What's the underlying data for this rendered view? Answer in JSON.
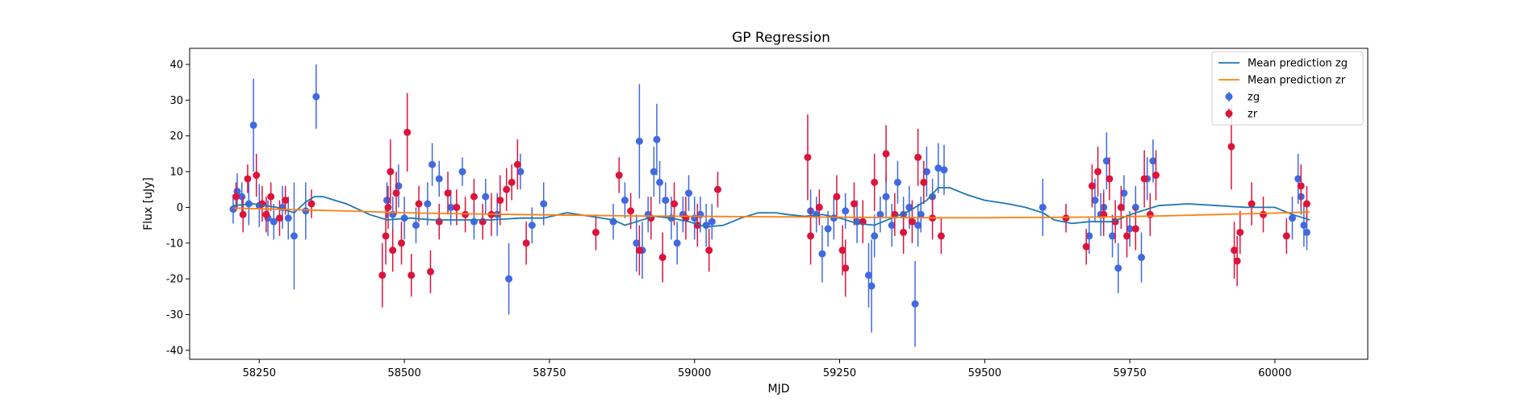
{
  "chart_data": {
    "type": "scatter",
    "title": "GP Regression",
    "xlabel": "MJD",
    "ylabel": "Flux [uJy]",
    "xlim": [
      58130,
      60160
    ],
    "ylim": [
      -42.5,
      44.5
    ],
    "xticks": [
      58250,
      58500,
      58750,
      59000,
      59250,
      59500,
      59750,
      60000
    ],
    "yticks": [
      -40,
      -30,
      -20,
      -10,
      0,
      10,
      20,
      30,
      40
    ],
    "grid": false,
    "legend_position": "top-right",
    "lines": [
      {
        "name": "Mean prediction zg",
        "color": "#1f77b4",
        "x": [
          58205,
          58240,
          58280,
          58310,
          58330,
          58345,
          58360,
          58380,
          58400,
          58440,
          58470,
          58510,
          58550,
          58600,
          58650,
          58700,
          58740,
          58780,
          58820,
          58860,
          58880,
          58900,
          58930,
          58960,
          58990,
          59020,
          59050,
          59080,
          59110,
          59140,
          59160,
          59190,
          59220,
          59250,
          59280,
          59310,
          59340,
          59370,
          59400,
          59420,
          59440,
          59470,
          59500,
          59540,
          59570,
          59600,
          59620,
          59650,
          59680,
          59720,
          59760,
          59800,
          59850,
          59900,
          59950,
          60000,
          60030,
          60050,
          60060
        ],
        "y": [
          0.5,
          1,
          0,
          -1.5,
          1.5,
          3,
          3,
          2,
          1,
          -2,
          -3.5,
          -3,
          -3.5,
          -3.5,
          -3.5,
          -3,
          -3,
          -1.5,
          -2.5,
          -3.5,
          -5,
          -4,
          -2.5,
          -3,
          -4,
          -5.5,
          -5,
          -3,
          -1.5,
          -1.5,
          -2,
          -2.5,
          -2,
          -3,
          -4.5,
          -5,
          -3,
          -1,
          2,
          5.5,
          5.5,
          3.5,
          2,
          1,
          0,
          -1.5,
          -3.5,
          -4.5,
          -4,
          -4,
          -1.5,
          0.5,
          1,
          0.5,
          0,
          0,
          -2,
          -3,
          -3.5
        ]
      },
      {
        "name": "Mean prediction zr",
        "color": "#ff7f0e",
        "x": [
          58205,
          58300,
          58400,
          58500,
          58600,
          58700,
          58800,
          58900,
          59000,
          59100,
          59200,
          59300,
          59400,
          59500,
          59600,
          59700,
          59800,
          59900,
          60000,
          60060
        ],
        "y": [
          -0.2,
          -0.6,
          -1.0,
          -1.5,
          -1.8,
          -2.0,
          -2.2,
          -2.4,
          -2.5,
          -2.6,
          -2.7,
          -2.8,
          -2.9,
          -2.9,
          -2.8,
          -2.7,
          -2.4,
          -2.0,
          -1.6,
          -1.3
        ]
      }
    ],
    "series": [
      {
        "name": "zg",
        "color": "#4169e1",
        "x": [
          58205,
          58212,
          58220,
          58232,
          58240,
          58250,
          58265,
          58275,
          58290,
          58300,
          58310,
          58330,
          58348,
          58470,
          58480,
          58490,
          58500,
          58520,
          58540,
          58548,
          58560,
          58580,
          58600,
          58620,
          58640,
          58660,
          58680,
          58700,
          58720,
          58740,
          58860,
          58880,
          58900,
          58905,
          58910,
          58920,
          58930,
          58935,
          58940,
          58950,
          58960,
          58970,
          58980,
          58990,
          59000,
          59010,
          59020,
          59030,
          59200,
          59210,
          59220,
          59230,
          59240,
          59260,
          59280,
          59300,
          59305,
          59310,
          59320,
          59330,
          59340,
          59350,
          59360,
          59370,
          59380,
          59385,
          59390,
          59400,
          59410,
          59420,
          59430,
          59600,
          59680,
          59690,
          59700,
          59705,
          59710,
          59720,
          59730,
          59740,
          59750,
          59760,
          59770,
          59780,
          59790,
          60030,
          60040,
          60045,
          60050,
          60055
        ],
        "y": [
          -0.5,
          4.5,
          3,
          1,
          23,
          0.5,
          -3,
          -4,
          0,
          -3,
          -8,
          -1,
          31,
          2,
          -2,
          6,
          -3,
          -5,
          1,
          12,
          8,
          0,
          10,
          -4,
          3,
          -2,
          -20,
          10,
          -5,
          1,
          -4,
          2,
          -10,
          18.5,
          -12,
          -2,
          10,
          19,
          7,
          2,
          -3,
          -10,
          -2,
          4,
          -3,
          -2,
          -5,
          -4,
          -1,
          -2,
          -13,
          -6,
          -3,
          -1,
          -4,
          -19,
          -22,
          -8,
          -2,
          3,
          -5,
          7,
          -2,
          0,
          -27,
          -5,
          -2,
          10,
          3,
          11,
          10.5,
          0,
          -8,
          2,
          -2,
          0,
          13,
          -8,
          -17,
          4,
          -6,
          0,
          -14,
          8,
          13,
          -3,
          8,
          3,
          -5,
          -7
        ],
        "err": [
          4,
          5,
          4,
          6,
          13,
          6,
          5,
          5,
          6,
          6,
          15,
          8,
          9,
          5,
          5,
          6,
          6,
          5,
          6,
          6,
          5,
          5,
          4,
          5,
          5,
          6,
          10,
          5,
          5,
          6,
          5,
          5,
          8,
          16,
          8,
          5,
          7,
          10,
          6,
          5,
          6,
          6,
          5,
          5,
          6,
          5,
          6,
          5,
          6,
          5,
          8,
          5,
          6,
          5,
          6,
          9,
          13,
          6,
          5,
          6,
          6,
          6,
          5,
          6,
          12,
          6,
          5,
          7,
          5,
          7,
          7,
          8,
          5,
          6,
          6,
          5,
          8,
          6,
          7,
          5,
          5,
          6,
          7,
          6,
          6,
          6,
          7,
          5,
          6,
          5
        ]
      },
      {
        "name": "zr",
        "color": "#dc143c",
        "x": [
          58210,
          58222,
          58230,
          58245,
          58255,
          58262,
          58270,
          58285,
          58295,
          58340,
          58462,
          58468,
          58472,
          58476,
          58480,
          58486,
          58495,
          58505,
          58512,
          58525,
          58545,
          58560,
          58575,
          58590,
          58605,
          58620,
          58635,
          58650,
          58665,
          58676,
          58685,
          58695,
          58710,
          58830,
          58870,
          58890,
          58905,
          58925,
          58945,
          58965,
          58985,
          59005,
          59025,
          59040,
          59195,
          59200,
          59215,
          59245,
          59255,
          59260,
          59275,
          59290,
          59310,
          59330,
          59345,
          59360,
          59375,
          59385,
          59395,
          59410,
          59425,
          59640,
          59675,
          59685,
          59695,
          59705,
          59715,
          59725,
          59735,
          59745,
          59760,
          59775,
          59785,
          59795,
          59925,
          59930,
          59935,
          59940,
          59960,
          59980,
          60020,
          60045,
          60055
        ],
        "y": [
          3,
          -2,
          8,
          9,
          1,
          -2,
          3,
          -3,
          2,
          1,
          -19,
          -8,
          0,
          10,
          -12,
          4,
          -10,
          21,
          -19,
          1,
          -18,
          -4,
          4,
          0,
          -2,
          3,
          -4,
          -2,
          2,
          5,
          7,
          12,
          -10,
          -7,
          9,
          -1,
          -12,
          -3,
          -14,
          1,
          -3,
          -5,
          -12,
          5,
          14,
          -8,
          0,
          3,
          -12,
          -17,
          1,
          -4,
          7,
          15,
          -2,
          -7,
          -4,
          14,
          7,
          -3,
          -8,
          -3,
          -11,
          6,
          10,
          -2,
          8,
          -4,
          0,
          -8,
          -6,
          8,
          -2,
          9,
          17,
          -12,
          -15,
          -7,
          1,
          -2,
          -8,
          6,
          1
        ],
        "err": [
          4,
          5,
          4,
          6,
          5,
          5,
          4,
          5,
          4,
          4,
          9,
          8,
          6,
          9,
          6,
          6,
          6,
          11,
          6,
          5,
          6,
          5,
          6,
          5,
          5,
          5,
          5,
          6,
          7,
          6,
          5,
          7,
          6,
          5,
          5,
          5,
          7,
          6,
          7,
          6,
          6,
          6,
          6,
          5,
          12,
          8,
          5,
          6,
          7,
          8,
          6,
          6,
          8,
          8,
          6,
          6,
          6,
          8,
          6,
          6,
          5,
          4,
          5,
          6,
          7,
          6,
          6,
          6,
          6,
          6,
          6,
          8,
          6,
          7,
          12,
          8,
          7,
          6,
          6,
          5,
          5,
          6,
          5
        ]
      }
    ]
  }
}
